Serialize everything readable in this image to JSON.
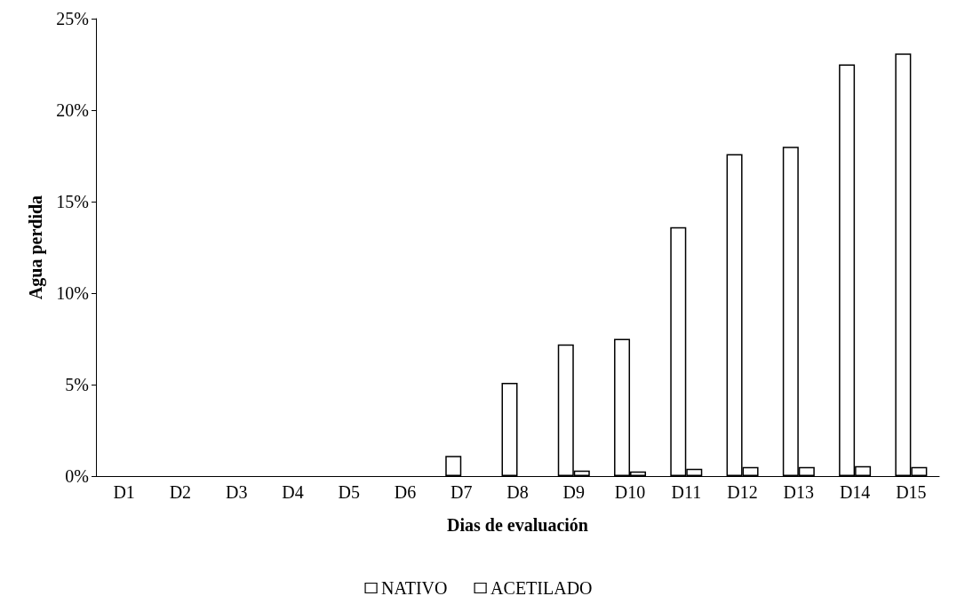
{
  "chart_data": {
    "type": "bar",
    "xlabel": "Dias de evaluación",
    "ylabel": "Agua perdida",
    "categories": [
      "D1",
      "D2",
      "D3",
      "D4",
      "D5",
      "D6",
      "D7",
      "D8",
      "D9",
      "D10",
      "D11",
      "D12",
      "D13",
      "D14",
      "D15"
    ],
    "series": [
      {
        "name": "NATIVO",
        "color": "#ffffff",
        "values": [
          0,
          0,
          0,
          0,
          0,
          0,
          1.1,
          5.1,
          7.2,
          7.5,
          13.6,
          17.6,
          18.0,
          22.5,
          23.1
        ]
      },
      {
        "name": "ACETILADO",
        "color": "#ffffff",
        "values": [
          0,
          0,
          0,
          0,
          0,
          0,
          0,
          0,
          0.3,
          0.25,
          0.4,
          0.5,
          0.5,
          0.55,
          0.5
        ]
      }
    ],
    "ylim": [
      0,
      25
    ],
    "yticks": [
      {
        "value": 0,
        "label": "0%"
      },
      {
        "value": 5,
        "label": "5%"
      },
      {
        "value": 10,
        "label": "10%"
      },
      {
        "value": 15,
        "label": "15%"
      },
      {
        "value": 20,
        "label": "20%"
      },
      {
        "value": 25,
        "label": "25%"
      }
    ],
    "grid": false,
    "legend": "bottom"
  }
}
